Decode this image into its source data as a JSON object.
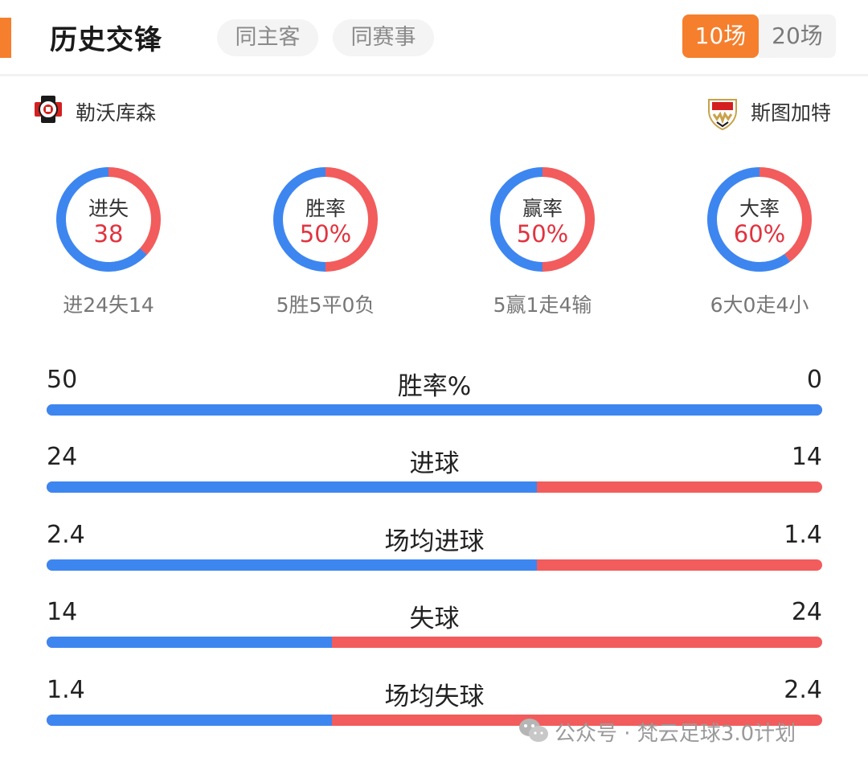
{
  "header": {
    "title": "历史交锋",
    "filters": [
      "同主客",
      "同赛事"
    ],
    "ranges": [
      "10场",
      "20场"
    ],
    "active_range": "10场"
  },
  "teams": {
    "home": {
      "name": "勒沃库森",
      "icon": "leverkusen-badge-icon"
    },
    "away": {
      "name": "斯图加特",
      "icon": "stuttgart-badge-icon"
    }
  },
  "colors": {
    "home": "#3d86f0",
    "away": "#f25c5c",
    "accent": "#f57f2d"
  },
  "rings": [
    {
      "label": "进失",
      "value": "38",
      "sub": "进24失14",
      "home_fraction": 0.632
    },
    {
      "label": "胜率",
      "value": "50%",
      "sub": "5胜5平0负",
      "home_fraction": 0.5
    },
    {
      "label": "赢率",
      "value": "50%",
      "sub": "5赢1走4输",
      "home_fraction": 0.5
    },
    {
      "label": "大率",
      "value": "60%",
      "sub": "6大0走4小",
      "home_fraction": 0.6
    }
  ],
  "stats": [
    {
      "name": "胜率%",
      "home": "50",
      "away": "0",
      "home_fraction": 1.0
    },
    {
      "name": "进球",
      "home": "24",
      "away": "14",
      "home_fraction": 0.632
    },
    {
      "name": "场均进球",
      "home": "2.4",
      "away": "1.4",
      "home_fraction": 0.632
    },
    {
      "name": "失球",
      "home": "14",
      "away": "24",
      "home_fraction": 0.368
    },
    {
      "name": "场均失球",
      "home": "1.4",
      "away": "2.4",
      "home_fraction": 0.368
    }
  ],
  "watermark": {
    "text": "公众号 · 梵云足球3.0计划",
    "icon": "wechat-icon"
  }
}
